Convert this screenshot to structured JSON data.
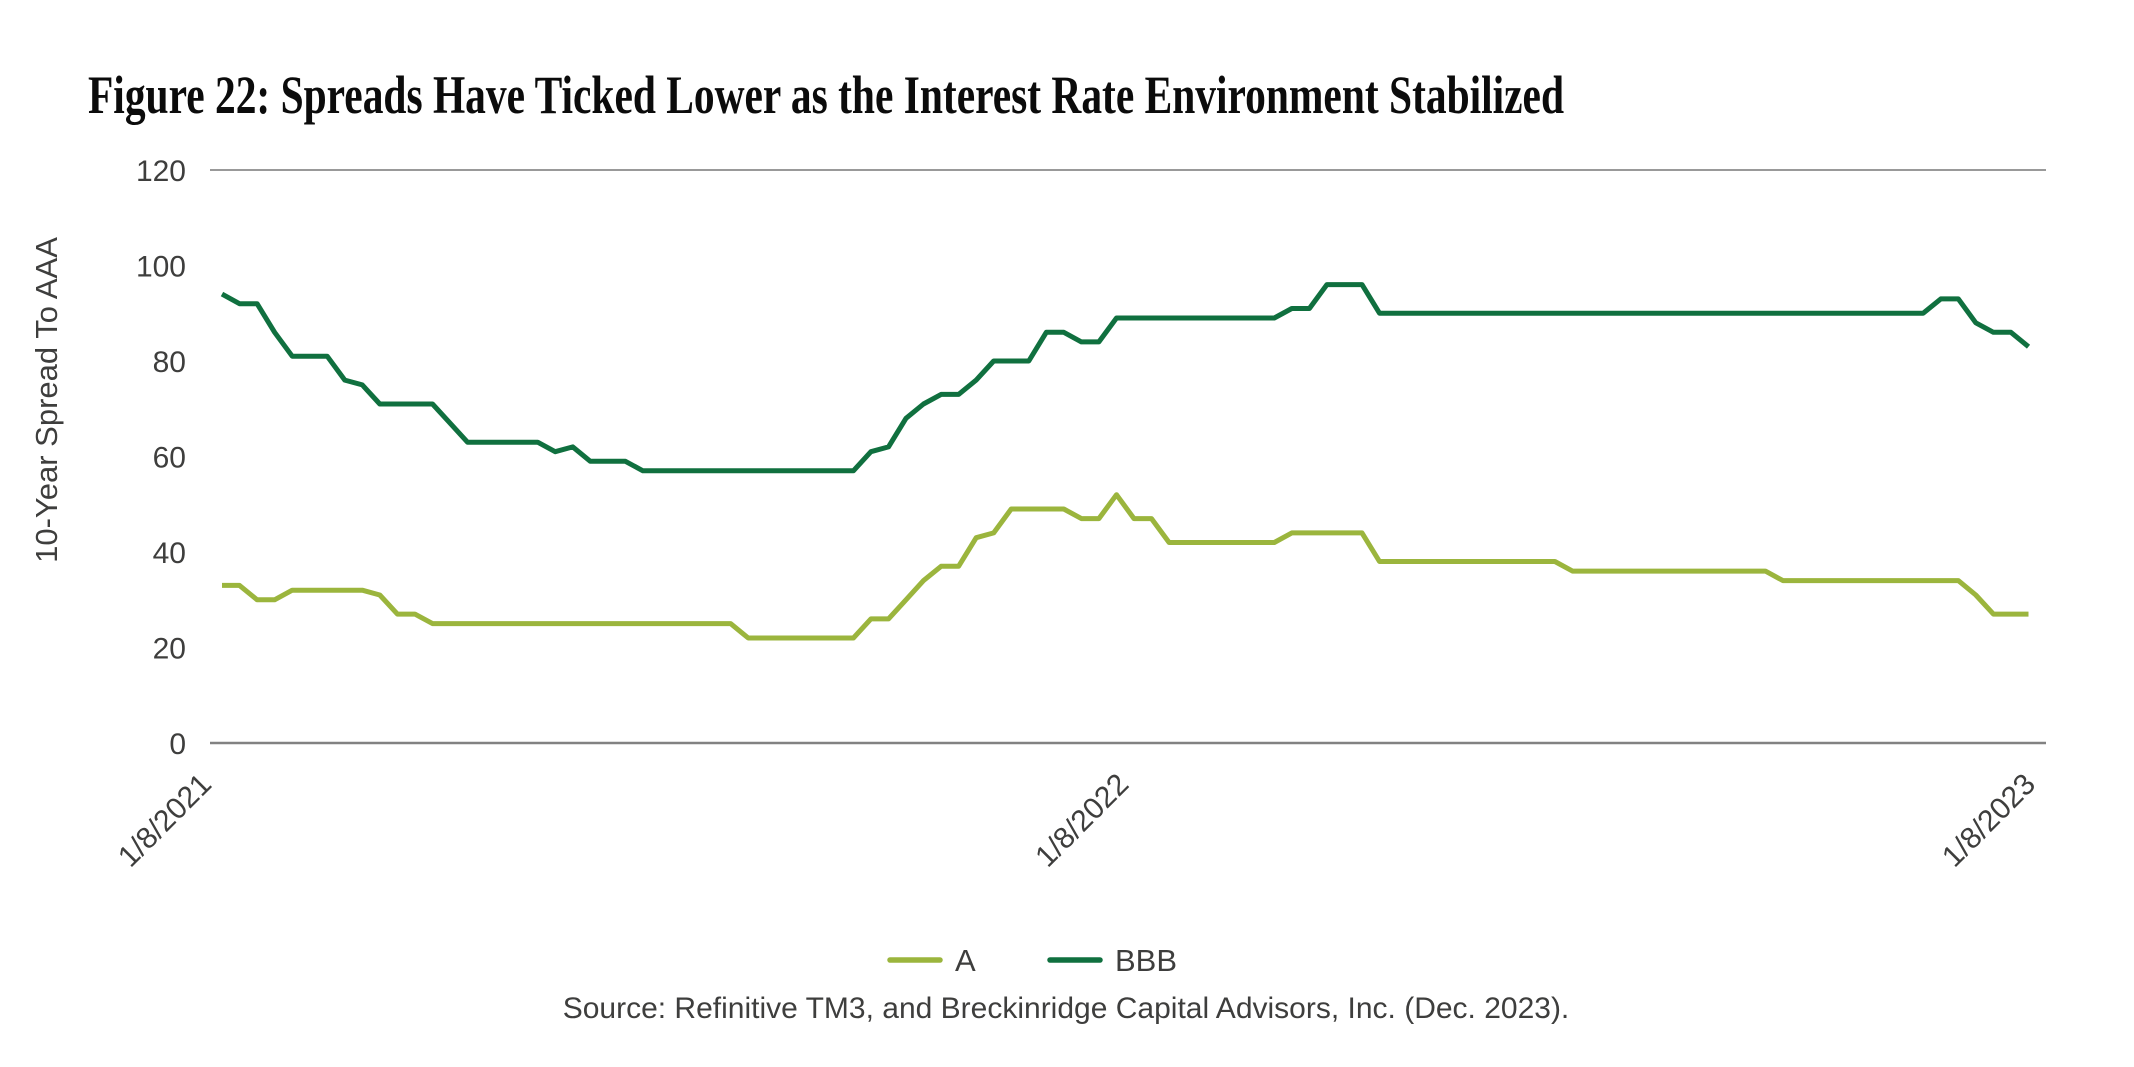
{
  "title": "Figure 22: Spreads Have Ticked Lower as the Interest Rate Environment Stabilized",
  "y_axis": {
    "label": "10-Year Spread To AAA",
    "ticks": [
      120,
      100,
      80,
      60,
      40,
      20,
      0
    ]
  },
  "x_axis": {
    "ticks": [
      "1/8/2021",
      "1/8/2022",
      "1/8/2023"
    ]
  },
  "legend": [
    {
      "label": "A",
      "color": "#9BB53D"
    },
    {
      "label": "BBB",
      "color": "#10703F"
    }
  ],
  "source": "Source: Refinitive TM3, and Breckinridge Capital Advisors, Inc. (Dec. 2023).",
  "chart_data": {
    "type": "line",
    "title": "Figure 22: Spreads Have Ticked Lower as the Interest Rate Environment Stabilized",
    "ylabel": "10-Year Spread To AAA",
    "ylim": [
      0,
      120
    ],
    "x_range": "weekly observations from 1/8/2021 to 1/8/2023",
    "x_tick_labels": [
      "1/8/2021",
      "1/8/2022",
      "1/8/2023"
    ],
    "grid": "horizontal rules at y=120 and y=0 only",
    "legend_position": "bottom-center",
    "series": [
      {
        "name": "A",
        "color": "#9BB53D",
        "values": [
          33,
          33,
          30,
          30,
          32,
          32,
          32,
          32,
          32,
          31,
          27,
          27,
          25,
          25,
          25,
          25,
          25,
          25,
          25,
          25,
          25,
          25,
          25,
          25,
          25,
          25,
          25,
          25,
          25,
          25,
          22,
          22,
          22,
          22,
          22,
          22,
          22,
          26,
          26,
          30,
          34,
          37,
          37,
          43,
          44,
          49,
          49,
          49,
          49,
          47,
          47,
          52,
          47,
          47,
          42,
          42,
          42,
          42,
          42,
          42,
          42,
          44,
          44,
          44,
          44,
          44,
          38,
          38,
          38,
          38,
          38,
          38,
          38,
          38,
          38,
          38,
          38,
          36,
          36,
          36,
          36,
          36,
          36,
          36,
          36,
          36,
          36,
          36,
          36,
          34,
          34,
          34,
          34,
          34,
          34,
          34,
          34,
          34,
          34,
          34,
          31,
          27,
          27,
          27
        ]
      },
      {
        "name": "BBB",
        "color": "#10703F",
        "values": [
          94,
          92,
          92,
          86,
          81,
          81,
          81,
          76,
          75,
          71,
          71,
          71,
          71,
          67,
          63,
          63,
          63,
          63,
          63,
          61,
          62,
          59,
          59,
          59,
          57,
          57,
          57,
          57,
          57,
          57,
          57,
          57,
          57,
          57,
          57,
          57,
          57,
          61,
          62,
          68,
          71,
          73,
          73,
          76,
          80,
          80,
          80,
          86,
          86,
          84,
          84,
          89,
          89,
          89,
          89,
          89,
          89,
          89,
          89,
          89,
          89,
          91,
          91,
          96,
          96,
          96,
          90,
          90,
          90,
          90,
          90,
          90,
          90,
          90,
          90,
          90,
          90,
          90,
          90,
          90,
          90,
          90,
          90,
          90,
          90,
          90,
          90,
          90,
          90,
          90,
          90,
          90,
          90,
          90,
          90,
          90,
          90,
          90,
          93,
          93,
          88,
          86,
          86,
          83
        ]
      }
    ]
  }
}
